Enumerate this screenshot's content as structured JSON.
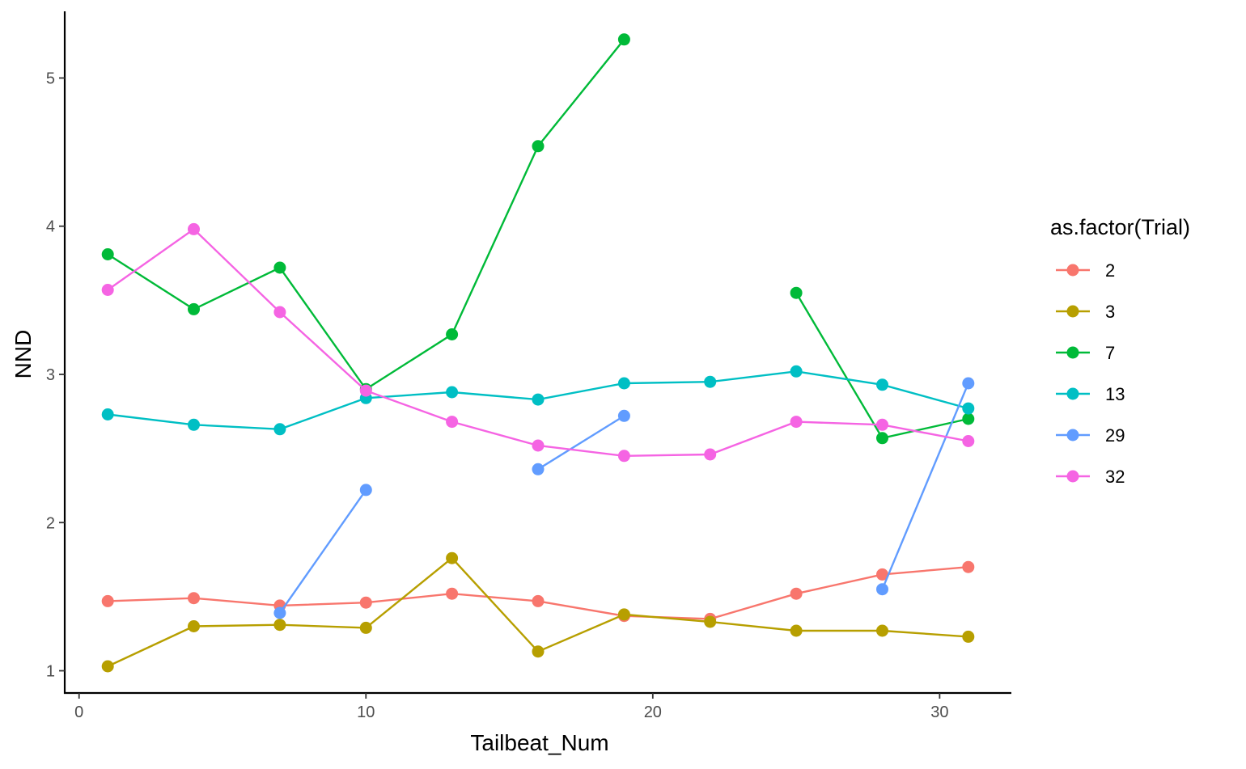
{
  "chart_data": {
    "type": "line",
    "xlabel": "Tailbeat_Num",
    "ylabel": "NND",
    "xlim": [
      -0.5,
      32.5
    ],
    "ylim": [
      0.85,
      5.45
    ],
    "x_ticks": [
      0,
      10,
      20,
      30
    ],
    "y_ticks": [
      1,
      2,
      3,
      4,
      5
    ],
    "grid": false,
    "legend": {
      "title": "as.factor(Trial)",
      "position": "right"
    },
    "series": [
      {
        "name": "2",
        "color": "#F8766D",
        "segments": [
          [
            [
              1,
              1.47
            ],
            [
              4,
              1.49
            ],
            [
              7,
              1.44
            ],
            [
              10,
              1.46
            ],
            [
              13,
              1.52
            ],
            [
              16,
              1.47
            ],
            [
              19,
              1.37
            ],
            [
              22,
              1.35
            ],
            [
              25,
              1.52
            ],
            [
              28,
              1.65
            ],
            [
              31,
              1.7
            ]
          ]
        ]
      },
      {
        "name": "3",
        "color": "#B79F00",
        "segments": [
          [
            [
              1,
              1.03
            ],
            [
              4,
              1.3
            ],
            [
              7,
              1.31
            ],
            [
              10,
              1.29
            ],
            [
              13,
              1.76
            ],
            [
              16,
              1.13
            ],
            [
              19,
              1.38
            ],
            [
              22,
              1.33
            ],
            [
              25,
              1.27
            ],
            [
              28,
              1.27
            ],
            [
              31,
              1.23
            ]
          ]
        ]
      },
      {
        "name": "7",
        "color": "#00BA38",
        "segments": [
          [
            [
              1,
              3.81
            ],
            [
              4,
              3.44
            ],
            [
              7,
              3.72
            ],
            [
              10,
              2.9
            ],
            [
              13,
              3.27
            ],
            [
              16,
              4.54
            ],
            [
              19,
              5.26
            ]
          ],
          [
            [
              25,
              3.55
            ],
            [
              28,
              2.57
            ],
            [
              31,
              2.7
            ]
          ]
        ]
      },
      {
        "name": "13",
        "color": "#00BFC4",
        "segments": [
          [
            [
              1,
              2.73
            ],
            [
              4,
              2.66
            ],
            [
              7,
              2.63
            ],
            [
              10,
              2.84
            ],
            [
              13,
              2.88
            ],
            [
              16,
              2.83
            ],
            [
              19,
              2.94
            ],
            [
              22,
              2.95
            ],
            [
              25,
              3.02
            ],
            [
              28,
              2.93
            ],
            [
              31,
              2.77
            ]
          ]
        ]
      },
      {
        "name": "29",
        "color": "#619CFF",
        "segments": [
          [
            [
              7,
              1.39
            ],
            [
              10,
              2.22
            ]
          ],
          [
            [
              16,
              2.36
            ],
            [
              19,
              2.72
            ]
          ],
          [
            [
              28,
              1.55
            ],
            [
              31,
              2.94
            ]
          ]
        ]
      },
      {
        "name": "32",
        "color": "#F564E3",
        "segments": [
          [
            [
              1,
              3.57
            ],
            [
              4,
              3.98
            ],
            [
              7,
              3.42
            ],
            [
              10,
              2.89
            ],
            [
              13,
              2.68
            ],
            [
              16,
              2.52
            ],
            [
              19,
              2.45
            ],
            [
              22,
              2.46
            ],
            [
              25,
              2.68
            ],
            [
              28,
              2.66
            ],
            [
              31,
              2.55
            ]
          ]
        ]
      }
    ]
  }
}
